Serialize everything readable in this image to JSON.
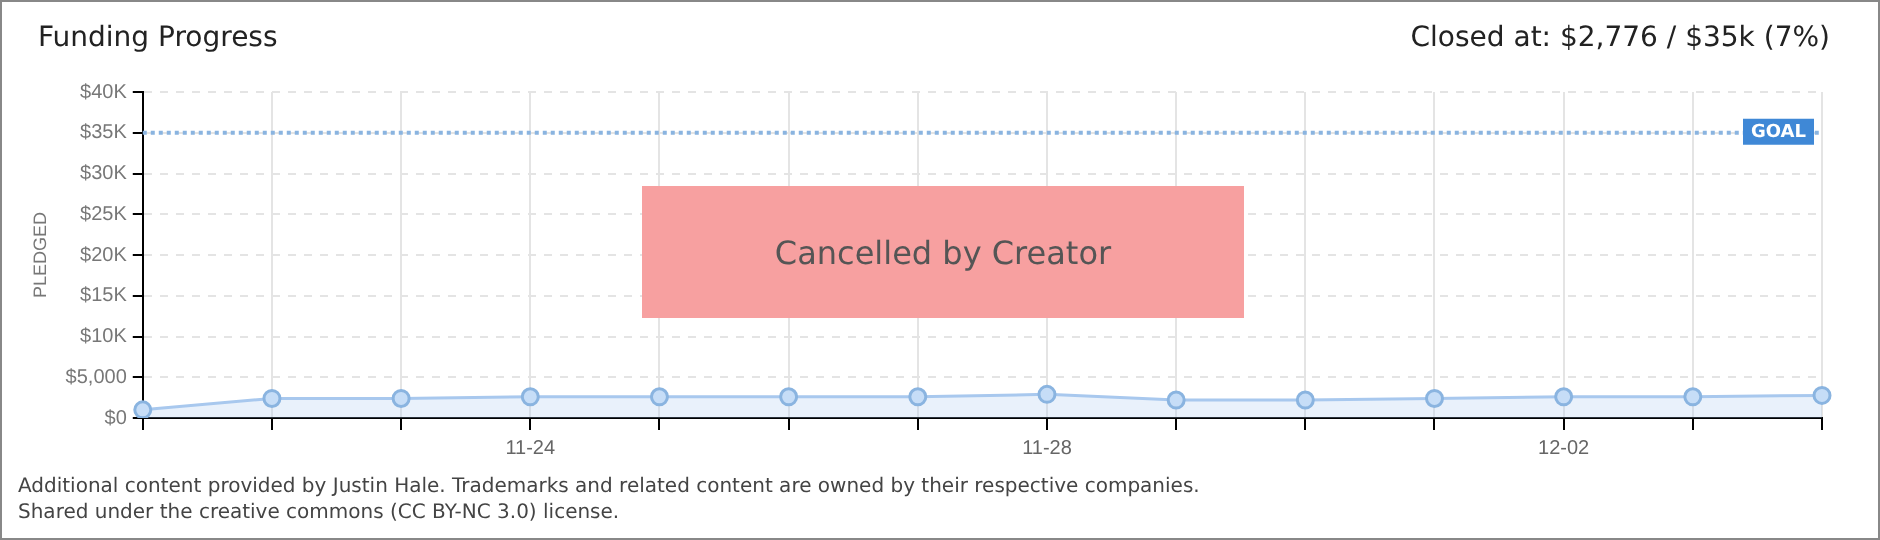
{
  "chart_data": {
    "type": "area",
    "title": "Funding Progress",
    "subtitle": "Closed at: $2,776 / $35k (7%)",
    "ylabel": "PLEDGED",
    "categories": [
      null,
      null,
      null,
      "11-24",
      null,
      null,
      null,
      "11-28",
      null,
      null,
      null,
      "12-02",
      null,
      null
    ],
    "series": [
      {
        "color": "#a8c8ee",
        "values": [
          1000,
          2400,
          2400,
          2600,
          2600,
          2600,
          2600,
          2900,
          2200,
          2200,
          2400,
          2600,
          2600,
          2776
        ]
      }
    ],
    "ylim": [
      0,
      40000
    ],
    "yticks": [
      {
        "value": 0,
        "label": "$0"
      },
      {
        "value": 5000,
        "label": "$5,000"
      },
      {
        "value": 10000,
        "label": "$10K"
      },
      {
        "value": 15000,
        "label": "$15K"
      },
      {
        "value": 20000,
        "label": "$20K"
      },
      {
        "value": 25000,
        "label": "$25K"
      },
      {
        "value": 30000,
        "label": "$30K"
      },
      {
        "value": 35000,
        "label": "$35K"
      },
      {
        "value": 40000,
        "label": "$40K"
      }
    ],
    "ref_lines": [
      {
        "axis": "y",
        "value": 35000,
        "label": "GOAL",
        "color": "#8ab4e0",
        "line_style": "dotted"
      }
    ],
    "grid": true,
    "legend": false,
    "marker": "circle",
    "annotations": [
      "Cancelled by Creator",
      "Additional content provided by Justin Hale. Trademarks and related content are owned by their respective companies.",
      "Shared under the creative commons (CC BY-NC 3.0) license."
    ]
  }
}
